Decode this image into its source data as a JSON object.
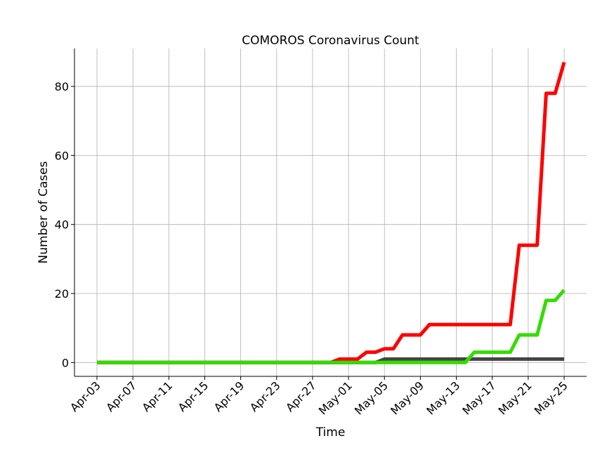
{
  "chart_data": {
    "type": "line",
    "title": "COMOROS Coronavirus Count",
    "xlabel": "Time",
    "ylabel": "Number of Cases",
    "x_start_date": "2020-04-03",
    "x_end_date": "2020-05-25",
    "xtick_labels": [
      "Apr-03",
      "Apr-07",
      "Apr-11",
      "Apr-15",
      "Apr-19",
      "Apr-23",
      "Apr-27",
      "May-01",
      "May-05",
      "May-09",
      "May-13",
      "May-17",
      "May-21",
      "May-25"
    ],
    "ylim": [
      -4,
      91
    ],
    "yticks": [
      0,
      20,
      40,
      60,
      80
    ],
    "grid": true,
    "series": [
      {
        "color": "#ff0000",
        "points": [
          [
            "2020-04-03",
            0
          ],
          [
            "2020-04-29",
            0
          ],
          [
            "2020-04-30",
            1
          ],
          [
            "2020-05-01",
            1
          ],
          [
            "2020-05-02",
            1
          ],
          [
            "2020-05-03",
            3
          ],
          [
            "2020-05-04",
            3
          ],
          [
            "2020-05-05",
            4
          ],
          [
            "2020-05-06",
            4
          ],
          [
            "2020-05-07",
            8
          ],
          [
            "2020-05-08",
            8
          ],
          [
            "2020-05-09",
            8
          ],
          [
            "2020-05-10",
            11
          ],
          [
            "2020-05-19",
            11
          ],
          [
            "2020-05-20",
            34
          ],
          [
            "2020-05-21",
            34
          ],
          [
            "2020-05-22",
            34
          ],
          [
            "2020-05-23",
            78
          ],
          [
            "2020-05-24",
            78
          ],
          [
            "2020-05-25",
            87
          ]
        ]
      },
      {
        "color": "#444444",
        "points": [
          [
            "2020-04-03",
            0
          ],
          [
            "2020-05-04",
            0
          ],
          [
            "2020-05-05",
            1
          ],
          [
            "2020-05-25",
            1
          ]
        ]
      },
      {
        "color": "#33dd00",
        "points": [
          [
            "2020-04-03",
            0
          ],
          [
            "2020-05-14",
            0
          ],
          [
            "2020-05-15",
            3
          ],
          [
            "2020-05-19",
            3
          ],
          [
            "2020-05-20",
            8
          ],
          [
            "2020-05-21",
            8
          ],
          [
            "2020-05-22",
            8
          ],
          [
            "2020-05-23",
            18
          ],
          [
            "2020-05-24",
            18
          ],
          [
            "2020-05-25",
            21
          ]
        ]
      }
    ]
  }
}
